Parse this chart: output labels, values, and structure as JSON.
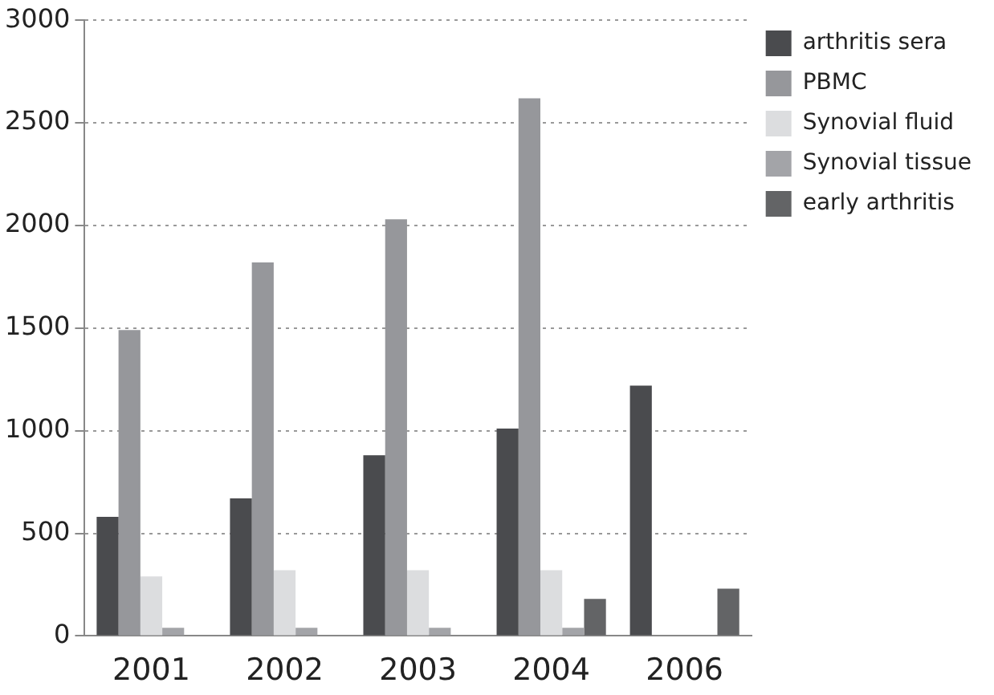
{
  "chart_data": {
    "type": "bar",
    "categories": [
      "2001",
      "2002",
      "2003",
      "2004",
      "2006"
    ],
    "series": [
      {
        "name": "arthritis sera",
        "color": "#4a4b4e",
        "values": [
          580,
          670,
          880,
          1010,
          1220
        ]
      },
      {
        "name": "PBMC",
        "color": "#96979b",
        "values": [
          1490,
          1820,
          2030,
          2620,
          null
        ]
      },
      {
        "name": "Synovial fluid",
        "color": "#dcdddf",
        "values": [
          290,
          320,
          320,
          320,
          null
        ]
      },
      {
        "name": "Synovial tissue",
        "color": "#a3a4a8",
        "values": [
          40,
          40,
          40,
          40,
          null
        ]
      },
      {
        "name": "early arthritis",
        "color": "#636466",
        "values": [
          null,
          null,
          null,
          180,
          230
        ]
      }
    ],
    "ylim": [
      0,
      3000
    ],
    "yticks": [
      0,
      500,
      1000,
      1500,
      2000,
      2500,
      3000
    ],
    "grid": "y",
    "legend": "right"
  }
}
